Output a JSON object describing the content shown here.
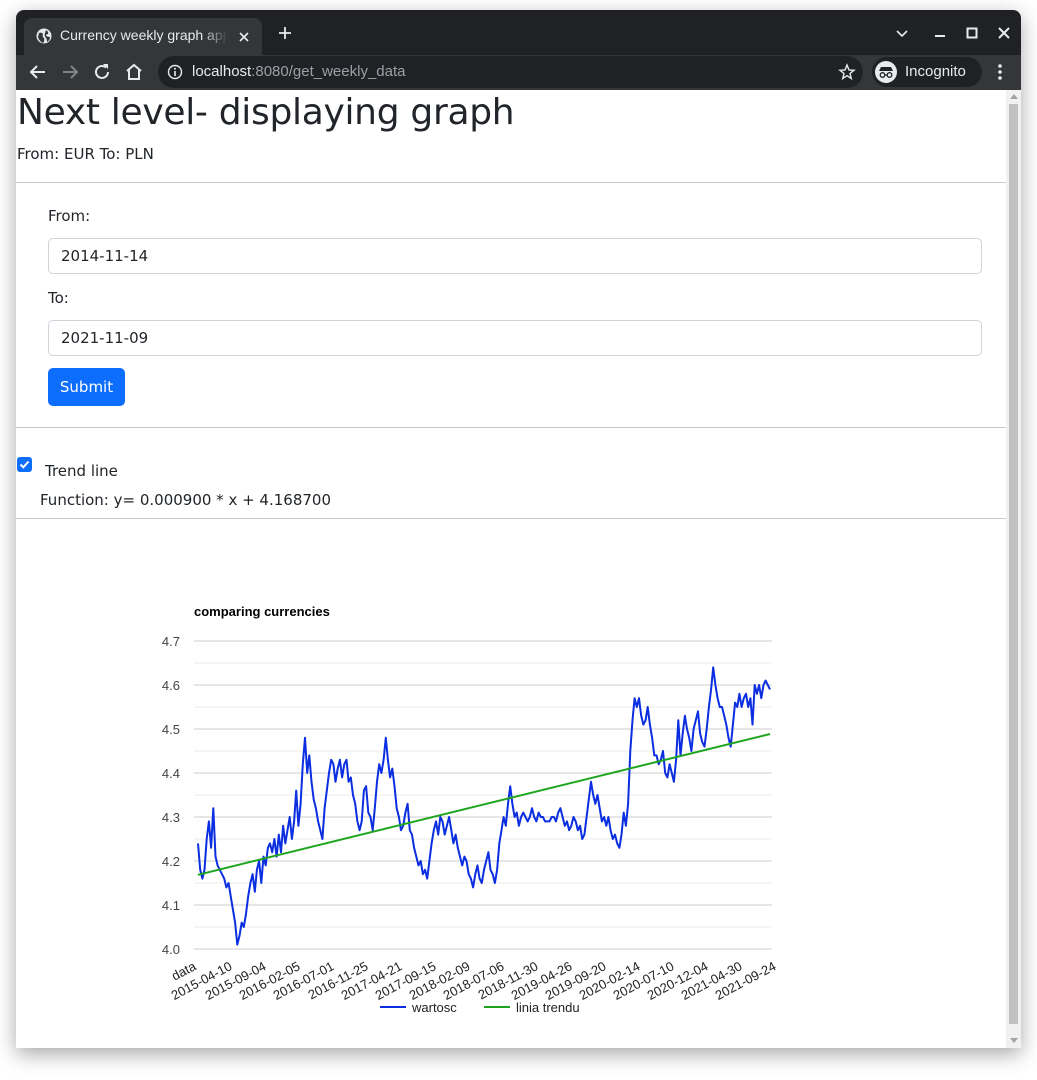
{
  "browser": {
    "tab_title": "Currency weekly graph app",
    "url_host": "localhost",
    "url_rest": ":8080/get_weekly_data",
    "incognito_label": "Incognito",
    "icons": [
      "globe-icon",
      "close-icon",
      "plus-icon",
      "chevron-down-icon",
      "minimize-icon",
      "maximize-icon",
      "close-window-icon",
      "back-icon",
      "forward-icon",
      "reload-icon",
      "home-icon",
      "info-icon",
      "star-icon",
      "incognito-icon",
      "menu-dots-icon"
    ]
  },
  "page": {
    "title": "Next level- displaying graph",
    "subtitle": "From: EUR To: PLN"
  },
  "form": {
    "from_label": "From:",
    "from_value": "2014-11-14",
    "to_label": "To:",
    "to_value": "2021-11-09",
    "submit_label": "Submit"
  },
  "trend": {
    "checked": true,
    "label": "Trend line",
    "function_text": "Function: y= 0.000900 * x + 4.168700"
  },
  "colors": {
    "primary": "#0d6efd",
    "series_wartosc": "#0a2ee0",
    "series_trend": "#1ea51e"
  },
  "chart_data": {
    "type": "line",
    "title": "comparing currencies",
    "xlabel": "",
    "ylabel": "",
    "ylim": [
      4.0,
      4.7
    ],
    "yticks": [
      "4.0",
      "4.1",
      "4.2",
      "4.3",
      "4.4",
      "4.5",
      "4.6",
      "4.7"
    ],
    "xticks": [
      "data",
      "2015-04-10",
      "2015-09-04",
      "2016-02-05",
      "2016-07-01",
      "2016-11-25",
      "2017-04-21",
      "2017-09-15",
      "2018-02-09",
      "2018-07-06",
      "2018-11-30",
      "2019-04-26",
      "2019-09-20",
      "2020-02-14",
      "2020-07-10",
      "2020-12-04",
      "2021-04-30",
      "2021-09-24"
    ],
    "grid": true,
    "legend_position": "bottom",
    "series": [
      {
        "name": "wartosc",
        "values": [
          4.24,
          4.18,
          4.16,
          4.18,
          4.25,
          4.29,
          4.23,
          4.32,
          4.21,
          4.19,
          4.18,
          4.17,
          4.16,
          4.14,
          4.15,
          4.12,
          4.09,
          4.06,
          4.01,
          4.03,
          4.06,
          4.05,
          4.08,
          4.12,
          4.15,
          4.17,
          4.13,
          4.18,
          4.2,
          4.15,
          4.21,
          4.19,
          4.23,
          4.24,
          4.22,
          4.25,
          4.21,
          4.26,
          4.22,
          4.28,
          4.24,
          4.27,
          4.3,
          4.25,
          4.29,
          4.36,
          4.28,
          4.33,
          4.42,
          4.48,
          4.4,
          4.44,
          4.38,
          4.34,
          4.32,
          4.29,
          4.27,
          4.25,
          4.32,
          4.36,
          4.4,
          4.43,
          4.42,
          4.38,
          4.41,
          4.43,
          4.39,
          4.42,
          4.43,
          4.38,
          4.39,
          4.35,
          4.33,
          4.29,
          4.27,
          4.29,
          4.36,
          4.37,
          4.31,
          4.3,
          4.27,
          4.32,
          4.38,
          4.42,
          4.4,
          4.43,
          4.48,
          4.43,
          4.39,
          4.41,
          4.37,
          4.32,
          4.3,
          4.27,
          4.28,
          4.31,
          4.33,
          4.27,
          4.26,
          4.23,
          4.21,
          4.19,
          4.2,
          4.17,
          4.18,
          4.16,
          4.2,
          4.24,
          4.27,
          4.29,
          4.26,
          4.3,
          4.29,
          4.26,
          4.28,
          4.3,
          4.27,
          4.24,
          4.26,
          4.23,
          4.21,
          4.19,
          4.21,
          4.2,
          4.17,
          4.16,
          4.14,
          4.17,
          4.19,
          4.16,
          4.15,
          4.18,
          4.2,
          4.22,
          4.18,
          4.17,
          4.15,
          4.18,
          4.24,
          4.27,
          4.3,
          4.28,
          4.33,
          4.37,
          4.33,
          4.3,
          4.31,
          4.28,
          4.3,
          4.31,
          4.3,
          4.29,
          4.3,
          4.32,
          4.3,
          4.29,
          4.31,
          4.3,
          4.3,
          4.29,
          4.29,
          4.29,
          4.3,
          4.3,
          4.29,
          4.31,
          4.32,
          4.3,
          4.28,
          4.29,
          4.27,
          4.28,
          4.3,
          4.29,
          4.27,
          4.28,
          4.25,
          4.26,
          4.3,
          4.34,
          4.38,
          4.35,
          4.33,
          4.35,
          4.32,
          4.29,
          4.3,
          4.28,
          4.3,
          4.27,
          4.25,
          4.26,
          4.24,
          4.23,
          4.26,
          4.31,
          4.28,
          4.33,
          4.45,
          4.52,
          4.57,
          4.55,
          4.57,
          4.53,
          4.51,
          4.52,
          4.55,
          4.51,
          4.48,
          4.44,
          4.44,
          4.42,
          4.43,
          4.45,
          4.4,
          4.39,
          4.42,
          4.4,
          4.38,
          4.43,
          4.52,
          4.44,
          4.49,
          4.53,
          4.5,
          4.48,
          4.45,
          4.5,
          4.52,
          4.54,
          4.49,
          4.47,
          4.46,
          4.5,
          4.55,
          4.59,
          4.64,
          4.6,
          4.57,
          4.55,
          4.55,
          4.53,
          4.51,
          4.48,
          4.46,
          4.51,
          4.56,
          4.55,
          4.58,
          4.55,
          4.57,
          4.58,
          4.55,
          4.57,
          4.51,
          4.6,
          4.58,
          4.6,
          4.57,
          4.6,
          4.61,
          4.6,
          4.59
        ]
      },
      {
        "name": "linia trendu",
        "values": [
          4.1687,
          4.4887
        ]
      }
    ]
  }
}
